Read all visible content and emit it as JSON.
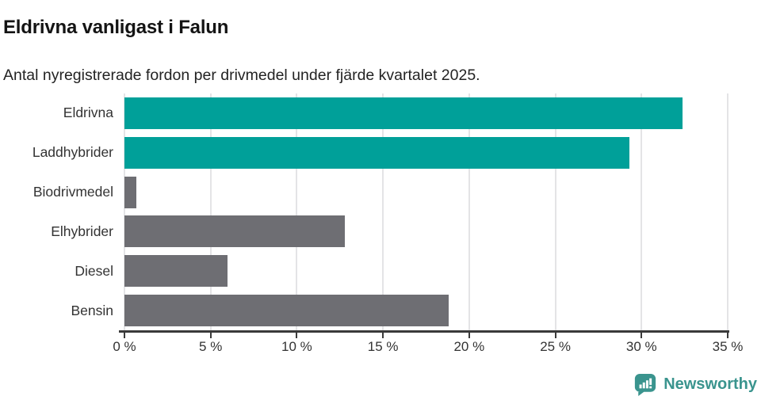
{
  "header": {
    "title": "Eldrivna vanligast i Falun",
    "subtitle": "Antal nyregistrerade fordon per drivmedel under fjärde kvartalet 2025."
  },
  "chart_data": {
    "type": "bar",
    "orientation": "horizontal",
    "title": "Eldrivna vanligast i Falun",
    "subtitle": "Antal nyregistrerade fordon per drivmedel under fjärde kvartalet 2025.",
    "categories": [
      "Eldrivna",
      "Laddhybrider",
      "Biodrivmedel",
      "Elhybrider",
      "Diesel",
      "Bensin"
    ],
    "values": [
      32.4,
      29.3,
      0.7,
      12.8,
      6.0,
      18.8
    ],
    "unit": "%",
    "bar_colors": [
      "#00a099",
      "#00a099",
      "#6e6e73",
      "#6e6e73",
      "#6e6e73",
      "#6e6e73"
    ],
    "xlim": [
      0,
      35
    ],
    "x_ticks": [
      {
        "value": 0,
        "label": "0 %"
      },
      {
        "value": 5,
        "label": "5 %"
      },
      {
        "value": 10,
        "label": "10 %"
      },
      {
        "value": 15,
        "label": "15 %"
      },
      {
        "value": 20,
        "label": "20 %"
      },
      {
        "value": 25,
        "label": "25 %"
      },
      {
        "value": 30,
        "label": "30 %"
      },
      {
        "value": 35,
        "label": "35 %"
      }
    ],
    "grid": true,
    "legend": false,
    "xlabel": "",
    "ylabel": ""
  },
  "footer": {
    "brand": "Newsworthy"
  },
  "colors": {
    "accent_teal": "#00a099",
    "neutral_gray": "#6e6e73",
    "gridline": "#e4e4e6",
    "axis": "#3a3a3a",
    "text": "#333333",
    "brand": "#3a948e"
  }
}
